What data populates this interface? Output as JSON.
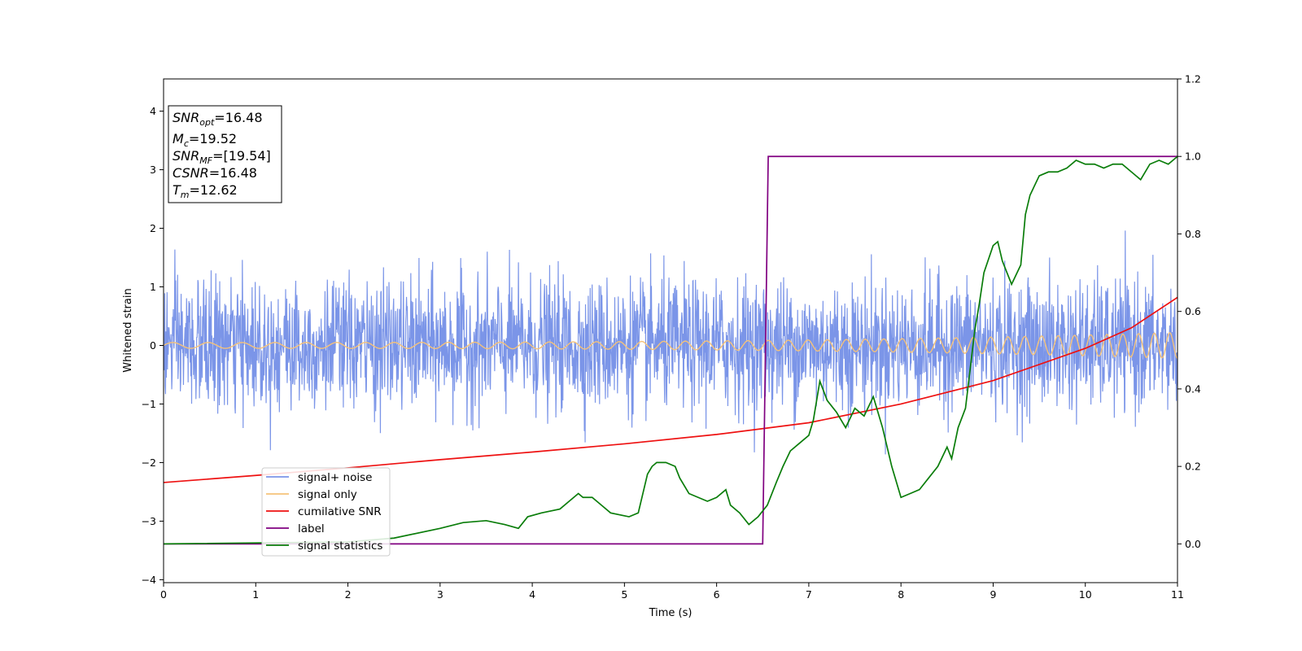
{
  "chart_data": {
    "type": "line",
    "xlabel": "Time (s)",
    "ylabel_left": "Whitened strain",
    "xlim": [
      0,
      11
    ],
    "ylim_left": [
      -4.05,
      4.55
    ],
    "ylim_right": [
      -0.1,
      1.2
    ],
    "x_ticks": [
      0,
      1,
      2,
      3,
      4,
      5,
      6,
      7,
      8,
      9,
      10,
      11
    ],
    "y_left_ticks": [
      -4,
      -3,
      -2,
      -1,
      0,
      1,
      2,
      3,
      4
    ],
    "y_right_ticks": [
      0.0,
      0.2,
      0.4,
      0.6,
      0.8,
      1.0,
      1.2
    ],
    "legend_placement": "lower-left",
    "grid": false,
    "annotation": {
      "lines": [
        {
          "sym": "SNR",
          "sub": "opt",
          "value": "=16.48"
        },
        {
          "sym": "M",
          "sub": "c",
          "value": "=19.52"
        },
        {
          "sym": "SNR",
          "sub": "MF",
          "value": "=[19.54]"
        },
        {
          "sym": "CSNR",
          "sub": "",
          "value": "=16.48"
        },
        {
          "sym": "T",
          "sub": "m",
          "value": "=12.62"
        }
      ]
    },
    "series": [
      {
        "name": "signal+ noise",
        "axis": "left",
        "color": "#7b95e8",
        "kind": "noise",
        "sigma": 0.55,
        "typical_range": [
          -1.3,
          1.3
        ],
        "extremes": [
          -2.7,
          2.1
        ]
      },
      {
        "name": "signal only",
        "axis": "left",
        "color": "#f5c27a",
        "kind": "chirp",
        "amplitude_start": 0.05,
        "amplitude_end": 0.22,
        "freq_start_hz": 2.5,
        "freq_end_hz": 6.0
      },
      {
        "name": "cumilative SNR",
        "axis": "left",
        "color": "#ee1111",
        "x": [
          0,
          1,
          2,
          3,
          4,
          5,
          6,
          7,
          8,
          9,
          10,
          10.5,
          11
        ],
        "y": [
          -2.34,
          -2.22,
          -2.09,
          -1.95,
          -1.82,
          -1.68,
          -1.52,
          -1.32,
          -1.0,
          -0.6,
          -0.05,
          0.3,
          0.82
        ]
      },
      {
        "name": "label",
        "axis": "right",
        "color": "#800080",
        "x": [
          0,
          6.5,
          6.56,
          11
        ],
        "y": [
          0,
          0,
          1,
          1
        ]
      },
      {
        "name": "signal statistics",
        "axis": "right",
        "color": "#0a7d0a",
        "x": [
          0,
          2.0,
          2.5,
          3.0,
          3.25,
          3.5,
          3.7,
          3.85,
          3.95,
          4.1,
          4.3,
          4.4,
          4.5,
          4.55,
          4.65,
          4.75,
          4.85,
          4.95,
          5.05,
          5.15,
          5.25,
          5.3,
          5.35,
          5.45,
          5.55,
          5.6,
          5.7,
          5.8,
          5.9,
          6.0,
          6.1,
          6.15,
          6.25,
          6.35,
          6.45,
          6.55,
          6.65,
          6.72,
          6.8,
          6.9,
          7.0,
          7.05,
          7.12,
          7.2,
          7.3,
          7.4,
          7.5,
          7.6,
          7.7,
          7.8,
          7.9,
          8.0,
          8.1,
          8.2,
          8.3,
          8.4,
          8.5,
          8.55,
          8.62,
          8.7,
          8.75,
          8.8,
          8.85,
          8.9,
          9.0,
          9.05,
          9.1,
          9.2,
          9.3,
          9.35,
          9.4,
          9.5,
          9.6,
          9.7,
          9.8,
          9.9,
          10.0,
          10.1,
          10.2,
          10.3,
          10.4,
          10.5,
          10.6,
          10.7,
          10.8,
          10.9,
          11.0
        ],
        "y": [
          0.0,
          0.005,
          0.015,
          0.04,
          0.055,
          0.06,
          0.05,
          0.04,
          0.07,
          0.08,
          0.09,
          0.11,
          0.13,
          0.12,
          0.12,
          0.1,
          0.08,
          0.075,
          0.07,
          0.08,
          0.18,
          0.2,
          0.21,
          0.21,
          0.2,
          0.17,
          0.13,
          0.12,
          0.11,
          0.12,
          0.14,
          0.1,
          0.08,
          0.05,
          0.07,
          0.1,
          0.16,
          0.2,
          0.24,
          0.26,
          0.28,
          0.32,
          0.42,
          0.37,
          0.34,
          0.3,
          0.35,
          0.33,
          0.38,
          0.3,
          0.2,
          0.12,
          0.13,
          0.14,
          0.17,
          0.2,
          0.25,
          0.22,
          0.3,
          0.35,
          0.45,
          0.55,
          0.62,
          0.7,
          0.77,
          0.78,
          0.73,
          0.67,
          0.72,
          0.85,
          0.9,
          0.95,
          0.96,
          0.96,
          0.97,
          0.99,
          0.98,
          0.98,
          0.97,
          0.98,
          0.98,
          0.96,
          0.94,
          0.98,
          0.99,
          0.98,
          1.0
        ]
      }
    ]
  }
}
